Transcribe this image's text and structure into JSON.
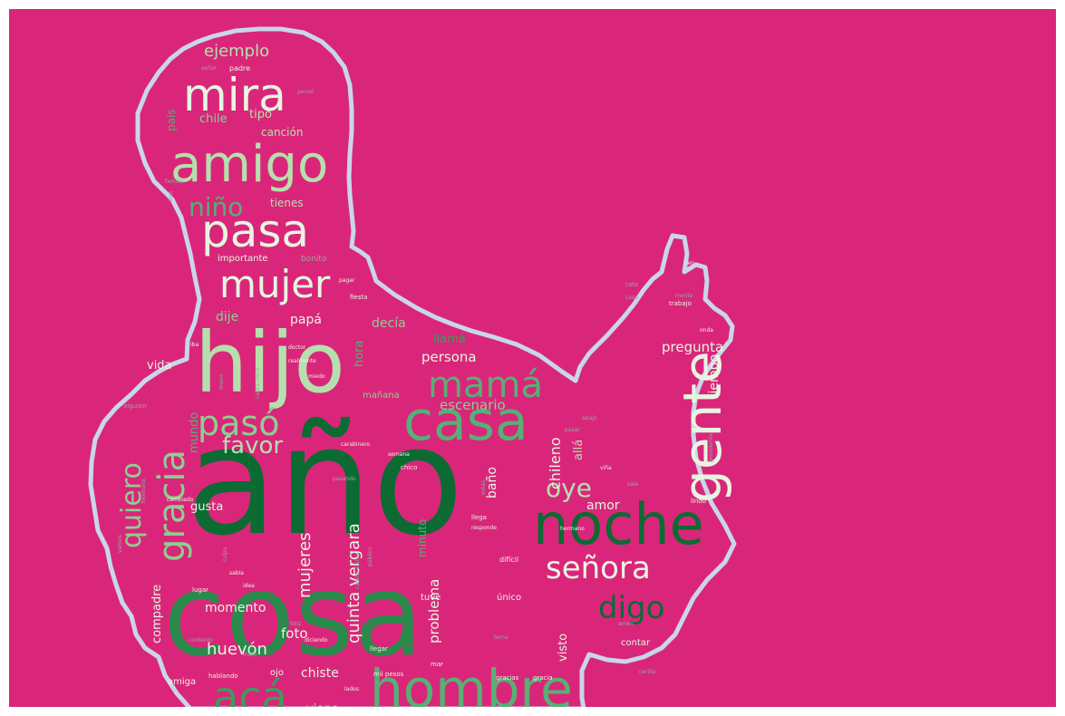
{
  "colors": {
    "background": "#d9267a",
    "outline": "#c9d6e8",
    "shades": [
      "#0b6b33",
      "#2a8a4c",
      "#3f9b5c",
      "#57b074",
      "#8dcf8f",
      "#b5e0ad",
      "#e6f5e1",
      "#9aa6a0"
    ]
  },
  "words": [
    {
      "text": "año"
    },
    {
      "text": "cosa"
    },
    {
      "text": "hijo"
    },
    {
      "text": "noche"
    },
    {
      "text": "casa"
    },
    {
      "text": "hombre"
    },
    {
      "text": "gente"
    },
    {
      "text": "amigo"
    },
    {
      "text": "pasa"
    },
    {
      "text": "mira"
    },
    {
      "text": "mujer"
    },
    {
      "text": "mamá"
    },
    {
      "text": "pasó"
    },
    {
      "text": "gracia"
    },
    {
      "text": "acá"
    },
    {
      "text": "señora"
    },
    {
      "text": "quiero"
    },
    {
      "text": "digo"
    },
    {
      "text": "favor"
    },
    {
      "text": "oye"
    },
    {
      "text": "niño"
    },
    {
      "text": "mujeres"
    },
    {
      "text": "ejemplo"
    },
    {
      "text": "huevón"
    },
    {
      "text": "quinta vergara"
    },
    {
      "text": "chileno"
    },
    {
      "text": "problema"
    },
    {
      "text": "escenario"
    },
    {
      "text": "persona"
    },
    {
      "text": "pregunta"
    },
    {
      "text": "tiempo"
    },
    {
      "text": "dije"
    },
    {
      "text": "papá"
    },
    {
      "text": "decía"
    },
    {
      "text": "llamá"
    },
    {
      "text": "hora"
    },
    {
      "text": "mundo"
    },
    {
      "text": "vida"
    },
    {
      "text": "gusta"
    },
    {
      "text": "momento"
    },
    {
      "text": "foto"
    },
    {
      "text": "chiste"
    },
    {
      "text": "viene"
    },
    {
      "text": "amor"
    },
    {
      "text": "allá"
    },
    {
      "text": "baño"
    },
    {
      "text": "minuto"
    },
    {
      "text": "visto"
    },
    {
      "text": "compadre"
    },
    {
      "text": "chile"
    },
    {
      "text": "tipo"
    },
    {
      "text": "canción"
    },
    {
      "text": "tienes"
    },
    {
      "text": "país"
    },
    {
      "text": "amiga"
    },
    {
      "text": "ojo"
    },
    {
      "text": "tuve"
    },
    {
      "text": "único"
    },
    {
      "text": "contar"
    },
    {
      "text": "mañana"
    },
    {
      "text": "importante"
    },
    {
      "text": "bonito"
    },
    {
      "text": "padre"
    },
    {
      "text": "señor"
    },
    {
      "text": "pensé"
    },
    {
      "text": "familia"
    },
    {
      "text": "dios"
    },
    {
      "text": "fiesta"
    },
    {
      "text": "pagar"
    },
    {
      "text": "trabajo"
    },
    {
      "text": "onda"
    },
    {
      "text": "doctor"
    },
    {
      "text": "realmente"
    },
    {
      "text": "miedo"
    },
    {
      "text": "iba"
    },
    {
      "text": "cabro chico"
    },
    {
      "text": "alguien"
    },
    {
      "text": "carabinero"
    },
    {
      "text": "semana"
    },
    {
      "text": "chico"
    },
    {
      "text": "pasando"
    },
    {
      "text": "cambiado"
    },
    {
      "text": "culpa"
    },
    {
      "text": "llega"
    },
    {
      "text": "responde"
    },
    {
      "text": "hermano"
    },
    {
      "text": "difícil"
    },
    {
      "text": "lindo"
    },
    {
      "text": "sale"
    },
    {
      "text": "viña"
    },
    {
      "text": "presidente"
    },
    {
      "text": "pasar"
    },
    {
      "text": "abajo"
    },
    {
      "text": "sabía"
    },
    {
      "text": "idea"
    },
    {
      "text": "lugar"
    },
    {
      "text": "feliz"
    },
    {
      "text": "diciendo"
    },
    {
      "text": "contento"
    },
    {
      "text": "malo"
    },
    {
      "text": "hablando"
    },
    {
      "text": "lados"
    },
    {
      "text": "mil pesos"
    },
    {
      "text": "mar"
    },
    {
      "text": "gracias"
    },
    {
      "text": "gracia"
    },
    {
      "text": "llegar"
    },
    {
      "text": "tema"
    },
    {
      "text": "cariño"
    },
    {
      "text": "amén"
    },
    {
      "text": "cabros chicos"
    },
    {
      "text": "público"
    },
    {
      "text": "estás"
    },
    {
      "text": "ven"
    },
    {
      "text": "rato"
    },
    {
      "text": "mano"
    },
    {
      "text": "hermana"
    },
    {
      "text": "caso"
    },
    {
      "text": "mente"
    },
    {
      "text": "vamos"
    }
  ]
}
